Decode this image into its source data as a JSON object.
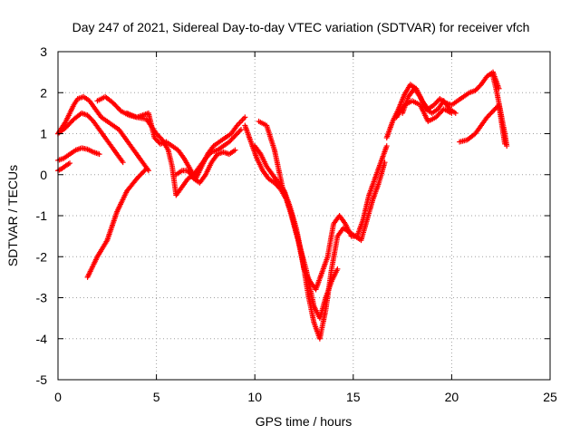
{
  "chart_data": {
    "type": "scatter",
    "title": "Day 247 of 2021, Sidereal Day-to-day VTEC variation (SDTVAR) for receiver vfch",
    "xlabel": "GPS time / hours",
    "ylabel": "SDTVAR / TECUs",
    "xlim": [
      0,
      25
    ],
    "ylim": [
      -5,
      3
    ],
    "xticks": [
      0,
      5,
      10,
      15,
      20,
      25
    ],
    "yticks": [
      -5,
      -4,
      -3,
      -2,
      -1,
      0,
      1,
      2,
      3
    ],
    "grid": true,
    "legend": "none",
    "marker": "+",
    "color": "#ff0000",
    "series": [
      {
        "x": [
          0.0,
          0.3,
          0.6,
          0.9,
          1.2,
          1.5,
          1.8,
          2.1
        ],
        "y": [
          0.35,
          0.4,
          0.5,
          0.6,
          0.65,
          0.62,
          0.55,
          0.5
        ]
      },
      {
        "x": [
          0.0,
          0.2,
          0.4,
          0.6
        ],
        "y": [
          0.1,
          0.15,
          0.22,
          0.28
        ]
      },
      {
        "x": [
          0.0,
          0.4,
          0.8,
          1.2,
          1.5,
          1.8,
          2.1,
          2.4,
          2.7,
          3.0,
          3.3
        ],
        "y": [
          1.0,
          1.15,
          1.35,
          1.5,
          1.45,
          1.3,
          1.1,
          0.9,
          0.7,
          0.5,
          0.3
        ]
      },
      {
        "x": [
          0.0,
          0.4,
          0.8,
          1.0,
          1.3,
          1.6,
          1.9,
          2.2,
          2.5,
          2.8,
          3.1,
          3.4,
          3.7,
          4.0,
          4.3,
          4.6
        ],
        "y": [
          1.0,
          1.3,
          1.7,
          1.85,
          1.9,
          1.8,
          1.6,
          1.4,
          1.3,
          1.2,
          1.1,
          0.9,
          0.7,
          0.5,
          0.3,
          0.1
        ]
      },
      {
        "x": [
          1.5,
          2.0,
          2.5,
          3.0,
          3.5,
          4.0,
          4.5
        ],
        "y": [
          -2.5,
          -2.0,
          -1.6,
          -0.9,
          -0.4,
          -0.1,
          0.15
        ]
      },
      {
        "x": [
          2.0,
          2.4,
          2.8,
          3.2,
          3.6,
          4.0,
          4.3,
          4.6,
          4.9,
          5.2,
          5.5,
          5.8,
          6.1,
          6.4,
          6.7,
          7.0,
          7.3,
          7.6,
          7.9,
          8.2,
          8.5,
          8.8,
          9.1,
          9.3,
          9.5
        ],
        "y": [
          1.8,
          1.9,
          1.75,
          1.55,
          1.45,
          1.4,
          1.45,
          1.5,
          0.9,
          0.75,
          0.8,
          0.7,
          0.6,
          0.4,
          0.15,
          -0.1,
          0.2,
          0.5,
          0.7,
          0.8,
          0.9,
          1.0,
          1.2,
          1.3,
          1.4
        ]
      },
      {
        "x": [
          3.5,
          4.0,
          4.5,
          5.0,
          5.3,
          5.6,
          5.8,
          6.0,
          6.3,
          6.6,
          6.9,
          7.2,
          7.5,
          7.8,
          8.1,
          8.4,
          8.7,
          9.0,
          9.3
        ],
        "y": [
          1.5,
          1.4,
          1.35,
          1.0,
          0.85,
          0.6,
          0.2,
          -0.5,
          -0.3,
          -0.1,
          0.0,
          0.2,
          0.4,
          0.55,
          0.6,
          0.7,
          0.8,
          0.95,
          1.1
        ]
      },
      {
        "x": [
          6.0,
          6.3,
          6.6,
          6.9,
          7.2,
          7.5,
          7.8,
          8.1,
          8.4,
          8.7,
          9.0
        ],
        "y": [
          0.0,
          0.1,
          0.1,
          -0.1,
          -0.2,
          0.0,
          0.3,
          0.5,
          0.55,
          0.5,
          0.6
        ]
      },
      {
        "x": [
          9.5,
          9.8,
          10.1,
          10.4,
          10.7,
          11.0,
          11.3,
          11.6,
          11.9,
          12.2,
          12.5,
          12.8,
          13.1,
          13.4,
          13.7,
          14.0,
          14.3,
          14.6,
          14.9,
          15.2,
          15.5,
          15.8,
          16.1,
          16.4,
          16.7
        ],
        "y": [
          1.2,
          0.8,
          0.4,
          0.1,
          -0.1,
          -0.2,
          -0.35,
          -0.6,
          -1.0,
          -1.6,
          -2.3,
          -2.6,
          -2.8,
          -2.4,
          -2.0,
          -1.2,
          -1.0,
          -1.2,
          -1.5,
          -1.5,
          -1.1,
          -0.5,
          -0.1,
          0.3,
          0.7
        ]
      },
      {
        "x": [
          10.0,
          10.3,
          10.6,
          10.9,
          11.2,
          11.5,
          11.8,
          12.1,
          12.4,
          12.7,
          13.0,
          13.3,
          13.6,
          13.9,
          14.2,
          14.5,
          14.8,
          15.1,
          15.4,
          15.7,
          16.0,
          16.3,
          16.6
        ],
        "y": [
          0.7,
          0.5,
          0.2,
          0.0,
          -0.2,
          -0.4,
          -0.8,
          -1.3,
          -2.0,
          -2.9,
          -3.6,
          -4.0,
          -3.3,
          -2.3,
          -1.5,
          -1.3,
          -1.4,
          -1.5,
          -1.6,
          -1.1,
          -0.6,
          -0.2,
          0.3
        ]
      },
      {
        "x": [
          10.2,
          10.6,
          11.0,
          11.4,
          11.8,
          12.2,
          12.6,
          13.0,
          13.3,
          13.6,
          13.9,
          14.2
        ],
        "y": [
          1.3,
          1.2,
          0.6,
          -0.3,
          -0.9,
          -1.6,
          -2.3,
          -3.2,
          -3.5,
          -3.0,
          -2.6,
          -2.3
        ]
      },
      {
        "x": [
          16.7,
          17.0,
          17.3,
          17.6,
          17.9,
          18.2,
          18.5,
          18.8,
          19.1,
          19.4,
          19.7,
          20.0,
          20.3,
          20.6,
          20.9,
          21.2,
          21.5,
          21.8,
          22.1,
          22.4
        ],
        "y": [
          0.9,
          1.3,
          1.6,
          1.95,
          2.2,
          2.1,
          1.8,
          1.6,
          1.7,
          1.85,
          1.75,
          1.7,
          1.8,
          1.9,
          2.0,
          2.05,
          2.2,
          2.4,
          2.5,
          2.1
        ]
      },
      {
        "x": [
          17.5,
          17.8,
          18.1,
          18.4,
          18.7,
          19.0,
          19.3,
          19.6,
          19.9,
          20.2
        ],
        "y": [
          1.5,
          1.9,
          2.1,
          1.9,
          1.6,
          1.5,
          1.6,
          1.8,
          1.6,
          1.5
        ]
      },
      {
        "x": [
          17.2,
          17.6,
          18.0,
          18.4,
          18.8,
          19.2,
          19.6,
          20.0
        ],
        "y": [
          1.4,
          1.7,
          1.8,
          1.7,
          1.3,
          1.4,
          1.6,
          1.5
        ]
      },
      {
        "x": [
          20.4,
          20.8,
          21.2,
          21.5,
          21.8,
          22.1,
          22.4,
          22.7
        ],
        "y": [
          0.8,
          0.85,
          1.0,
          1.2,
          1.4,
          1.55,
          1.7,
          0.75
        ]
      },
      {
        "x": [
          22.1,
          22.3,
          22.5,
          22.7,
          22.8
        ],
        "y": [
          2.4,
          2.0,
          1.5,
          1.0,
          0.7
        ]
      }
    ]
  }
}
